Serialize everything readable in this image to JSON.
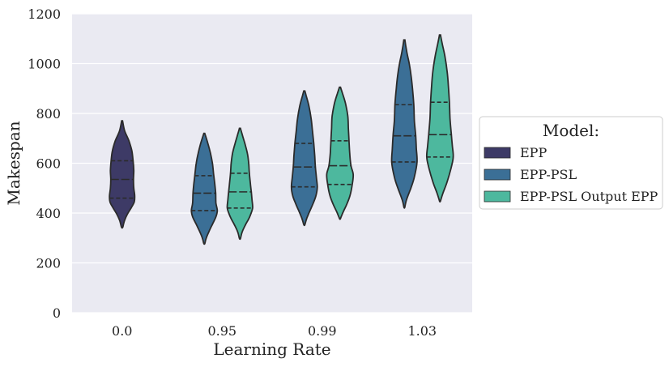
{
  "chart_data": {
    "type": "violin",
    "title": "",
    "xlabel": "Learning Rate",
    "ylabel": "Makespan",
    "categories": [
      "0.0",
      "0.95",
      "0.99",
      "1.03"
    ],
    "ylim": [
      0,
      1200
    ],
    "yticks": [
      0,
      200,
      400,
      600,
      800,
      1000,
      1200
    ],
    "grid": true,
    "legend": {
      "title": "Model:",
      "placement": "right",
      "entries": [
        "EPP",
        "EPP-PSL",
        "EPP-PSL Output EPP"
      ]
    },
    "colors": {
      "background": "#EAEAF2",
      "grid": "#FFFFFF",
      "EPP": "#3D3A66",
      "EPP-PSL": "#3B6F96",
      "EPP-PSL Output EPP": "#4DB89E",
      "outline": "#2B2B2B"
    },
    "series": [
      {
        "name": "EPP",
        "violins": [
          {
            "category": "0.0",
            "min": 345,
            "max": 770,
            "q1": 460,
            "median": 535,
            "q3": 610,
            "profile": [
              [
                345,
                0.05
              ],
              [
                370,
                0.15
              ],
              [
                395,
                0.32
              ],
              [
                420,
                0.55
              ],
              [
                445,
                0.75
              ],
              [
                470,
                0.78
              ],
              [
                500,
                0.72
              ],
              [
                535,
                0.7
              ],
              [
                570,
                0.72
              ],
              [
                610,
                0.68
              ],
              [
                650,
                0.6
              ],
              [
                690,
                0.42
              ],
              [
                730,
                0.16
              ],
              [
                770,
                0.03
              ]
            ]
          }
        ]
      },
      {
        "name": "EPP-PSL",
        "violins": [
          {
            "category": "0.95",
            "min": 280,
            "max": 720,
            "q1": 410,
            "median": 480,
            "q3": 550,
            "profile": [
              [
                280,
                0.04
              ],
              [
                300,
                0.12
              ],
              [
                325,
                0.28
              ],
              [
                355,
                0.5
              ],
              [
                385,
                0.72
              ],
              [
                410,
                0.8
              ],
              [
                440,
                0.72
              ],
              [
                480,
                0.7
              ],
              [
                520,
                0.64
              ],
              [
                560,
                0.57
              ],
              [
                600,
                0.5
              ],
              [
                640,
                0.38
              ],
              [
                680,
                0.22
              ],
              [
                720,
                0.03
              ]
            ]
          },
          {
            "category": "0.99",
            "min": 355,
            "max": 890,
            "q1": 505,
            "median": 585,
            "q3": 680,
            "profile": [
              [
                355,
                0.04
              ],
              [
                380,
                0.16
              ],
              [
                410,
                0.35
              ],
              [
                440,
                0.55
              ],
              [
                470,
                0.72
              ],
              [
                505,
                0.8
              ],
              [
                545,
                0.74
              ],
              [
                585,
                0.68
              ],
              [
                630,
                0.64
              ],
              [
                680,
                0.58
              ],
              [
                730,
                0.5
              ],
              [
                780,
                0.42
              ],
              [
                830,
                0.28
              ],
              [
                870,
                0.12
              ],
              [
                890,
                0.03
              ]
            ]
          },
          {
            "category": "1.03",
            "min": 425,
            "max": 1095,
            "q1": 605,
            "median": 710,
            "q3": 835,
            "profile": [
              [
                425,
                0.03
              ],
              [
                455,
                0.14
              ],
              [
                500,
                0.4
              ],
              [
                545,
                0.62
              ],
              [
                605,
                0.78
              ],
              [
                660,
                0.74
              ],
              [
                710,
                0.7
              ],
              [
                770,
                0.62
              ],
              [
                835,
                0.58
              ],
              [
                900,
                0.5
              ],
              [
                950,
                0.42
              ],
              [
                1000,
                0.3
              ],
              [
                1050,
                0.14
              ],
              [
                1095,
                0.03
              ]
            ]
          }
        ]
      },
      {
        "name": "EPP-PSL Output EPP",
        "violins": [
          {
            "category": "0.95",
            "min": 300,
            "max": 740,
            "q1": 420,
            "median": 485,
            "q3": 560,
            "profile": [
              [
                300,
                0.04
              ],
              [
                325,
                0.14
              ],
              [
                355,
                0.36
              ],
              [
                385,
                0.6
              ],
              [
                420,
                0.78
              ],
              [
                455,
                0.74
              ],
              [
                485,
                0.7
              ],
              [
                520,
                0.64
              ],
              [
                560,
                0.58
              ],
              [
                600,
                0.54
              ],
              [
                640,
                0.46
              ],
              [
                680,
                0.3
              ],
              [
                715,
                0.14
              ],
              [
                740,
                0.03
              ]
            ]
          },
          {
            "category": "0.99",
            "min": 380,
            "max": 905,
            "q1": 515,
            "median": 590,
            "q3": 690,
            "profile": [
              [
                380,
                0.04
              ],
              [
                405,
                0.2
              ],
              [
                435,
                0.42
              ],
              [
                470,
                0.62
              ],
              [
                515,
                0.76
              ],
              [
                555,
                0.82
              ],
              [
                590,
                0.68
              ],
              [
                640,
                0.6
              ],
              [
                690,
                0.56
              ],
              [
                740,
                0.52
              ],
              [
                790,
                0.48
              ],
              [
                840,
                0.34
              ],
              [
                880,
                0.16
              ],
              [
                905,
                0.03
              ]
            ]
          },
          {
            "category": "1.03",
            "min": 450,
            "max": 1115,
            "q1": 625,
            "median": 715,
            "q3": 845,
            "profile": [
              [
                450,
                0.04
              ],
              [
                480,
                0.18
              ],
              [
                525,
                0.44
              ],
              [
                580,
                0.68
              ],
              [
                625,
                0.82
              ],
              [
                670,
                0.76
              ],
              [
                715,
                0.7
              ],
              [
                780,
                0.62
              ],
              [
                845,
                0.58
              ],
              [
                910,
                0.52
              ],
              [
                970,
                0.44
              ],
              [
                1030,
                0.3
              ],
              [
                1080,
                0.14
              ],
              [
                1115,
                0.03
              ]
            ]
          }
        ]
      }
    ]
  }
}
